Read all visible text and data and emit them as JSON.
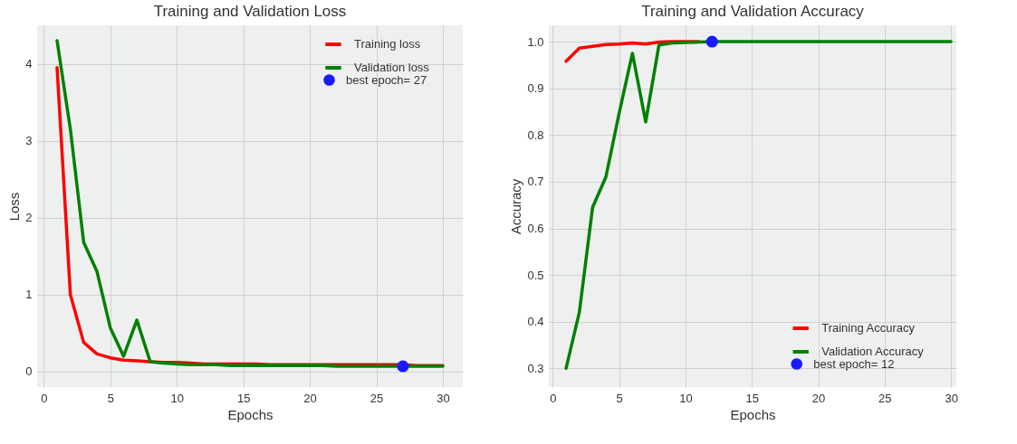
{
  "chart_data": [
    {
      "type": "line",
      "title": "Training and Validation Loss",
      "xlabel": "Epochs",
      "ylabel": "Loss",
      "xlim": [
        -0.5,
        31.5
      ],
      "xticks": [
        0,
        5,
        10,
        15,
        20,
        25,
        30
      ],
      "ylim": [
        -0.2,
        4.5
      ],
      "yticks": [
        0,
        1,
        2,
        3,
        4
      ],
      "grid": true,
      "legend": "top right",
      "x": [
        1,
        2,
        3,
        4,
        5,
        6,
        7,
        8,
        9,
        10,
        11,
        12,
        13,
        14,
        15,
        16,
        17,
        18,
        19,
        20,
        21,
        22,
        23,
        24,
        25,
        26,
        27,
        28,
        29,
        30
      ],
      "series": [
        {
          "name": "Training loss",
          "color": "#ff0000",
          "values": [
            3.95,
            1.0,
            0.38,
            0.23,
            0.18,
            0.15,
            0.14,
            0.13,
            0.12,
            0.12,
            0.11,
            0.1,
            0.1,
            0.1,
            0.1,
            0.1,
            0.09,
            0.09,
            0.09,
            0.09,
            0.09,
            0.09,
            0.09,
            0.09,
            0.09,
            0.09,
            0.09,
            0.08,
            0.08,
            0.08
          ]
        },
        {
          "name": "Validation loss",
          "color": "#008000",
          "values": [
            4.3,
            3.15,
            1.68,
            1.3,
            0.57,
            0.2,
            0.67,
            0.13,
            0.11,
            0.1,
            0.09,
            0.09,
            0.09,
            0.08,
            0.08,
            0.08,
            0.08,
            0.08,
            0.08,
            0.08,
            0.08,
            0.07,
            0.07,
            0.07,
            0.07,
            0.07,
            0.07,
            0.07,
            0.07,
            0.07
          ]
        },
        {
          "name": "best epoch= 27",
          "type": "scatter",
          "marker": "circle",
          "color": "#1a1aff",
          "x": [
            27
          ],
          "values": [
            0.07
          ]
        }
      ]
    },
    {
      "type": "line",
      "title": "Training and Validation Accuracy",
      "xlabel": "Epochs",
      "ylabel": "Accuracy",
      "xlim": [
        -0.3,
        30.4
      ],
      "xticks": [
        0,
        5,
        10,
        15,
        20,
        25,
        30
      ],
      "ylim": [
        0.26,
        1.035
      ],
      "yticks": [
        0.3,
        0.4,
        0.5,
        0.6,
        0.7,
        0.8,
        0.9,
        {
          "value": 1,
          "label": "1.0"
        }
      ],
      "grid": true,
      "legend": "bottom right",
      "x": [
        1,
        2,
        3,
        4,
        5,
        6,
        7,
        8,
        9,
        10,
        11,
        12,
        13,
        14,
        15,
        16,
        17,
        18,
        19,
        20,
        21,
        22,
        23,
        24,
        25,
        26,
        27,
        28,
        29,
        30
      ],
      "series": [
        {
          "name": "Training Accuracy",
          "color": "#ff0000",
          "values": [
            0.958,
            0.986,
            0.99,
            0.994,
            0.995,
            0.997,
            0.995,
            0.999,
            1,
            1,
            1,
            null,
            null,
            null,
            null,
            null,
            null,
            null,
            null,
            null,
            null,
            null,
            null,
            null,
            null,
            null,
            null,
            null,
            null,
            null
          ]
        },
        {
          "name": "Validation Accuracy",
          "color": "#008000",
          "values": [
            0.3,
            0.42,
            0.645,
            0.71,
            0.847,
            0.975,
            0.828,
            0.993,
            0.997,
            0.998,
            0.999,
            1,
            1,
            1,
            1,
            1,
            1,
            1,
            1,
            1,
            1,
            1,
            1,
            1,
            1,
            1,
            1,
            1,
            1,
            1
          ]
        },
        {
          "name": "best epoch= 12",
          "type": "scatter",
          "marker": "circle",
          "color": "#1a1aff",
          "x": [
            12
          ],
          "values": [
            1
          ]
        }
      ]
    }
  ]
}
